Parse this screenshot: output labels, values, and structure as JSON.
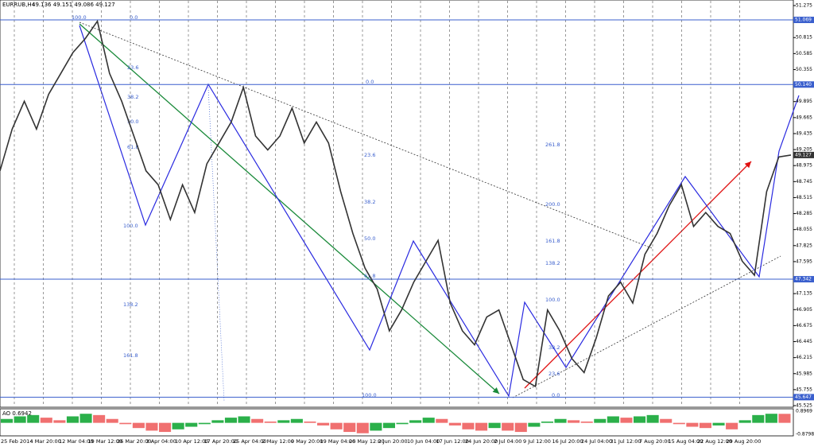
{
  "header": {
    "symbol": "EURRUB,H4",
    "quote": "49.136 49.151 49.086 49.127"
  },
  "price_axis": {
    "ylim": [
      45.525,
      51.275
    ],
    "ticks": [
      51.275,
      50.815,
      50.585,
      50.355,
      49.895,
      49.665,
      49.435,
      49.205,
      48.975,
      48.745,
      48.515,
      48.285,
      48.055,
      47.825,
      47.595,
      47.135,
      46.905,
      46.675,
      46.445,
      46.215,
      45.985,
      45.755,
      45.525
    ],
    "levels": [
      {
        "value": 51.069,
        "label": "51.069"
      },
      {
        "value": 50.14,
        "label": "50.140"
      },
      {
        "value": 47.342,
        "label": "47.342"
      },
      {
        "value": 45.647,
        "label": "45.647"
      }
    ],
    "current": 49.127
  },
  "time_axis": [
    "25 Feb 2014",
    "4 Mar 20:00",
    "12 Mar 04:00",
    "19 Mar 12:00",
    "26 Mar 20:00",
    "3 Apr 04:00",
    "10 Apr 12:00",
    "17 Apr 20:00",
    "25 Apr 04:00",
    "2 May 12:00",
    "9 May 20:00",
    "19 May 04:00",
    "26 May 12:00",
    "2 Jun 20:00",
    "10 Jun 04:00",
    "17 Jun 12:00",
    "24 Jun 20:00",
    "2 Jul 04:00",
    "9 Jul 12:00",
    "16 Jul 20:00",
    "24 Jul 04:00",
    "31 Jul 12:00",
    "7 Aug 20:00",
    "15 Aug 04:00",
    "22 Aug 12:00",
    "29 Aug 20:00"
  ],
  "price": [
    48.9,
    49.5,
    49.9,
    49.5,
    50.0,
    50.3,
    50.6,
    50.8,
    51.05,
    50.3,
    49.9,
    49.4,
    48.9,
    48.7,
    48.2,
    48.7,
    48.3,
    49.0,
    49.3,
    49.6,
    50.1,
    49.4,
    49.2,
    49.4,
    49.8,
    49.3,
    49.6,
    49.3,
    48.6,
    48.0,
    47.5,
    47.2,
    46.6,
    46.9,
    47.3,
    47.6,
    47.9,
    47.0,
    46.6,
    46.4,
    46.8,
    46.9,
    46.4,
    45.9,
    45.8,
    46.9,
    46.6,
    46.2,
    46.0,
    46.5,
    47.1,
    47.3,
    47.0,
    47.7,
    48.0,
    48.4,
    48.7,
    48.1,
    48.3,
    48.1,
    48.0,
    47.6,
    47.4,
    48.6,
    49.1,
    49.127
  ],
  "ao": {
    "label": "AO 0.6942",
    "ylim": [
      -0.8798,
      0.8969
    ],
    "ticks": [
      0.8969,
      -0.8798
    ],
    "values": [
      0.3,
      0.5,
      0.6,
      0.4,
      0.2,
      0.5,
      0.7,
      0.6,
      0.3,
      -0.1,
      -0.4,
      -0.6,
      -0.7,
      -0.5,
      -0.3,
      -0.1,
      0.2,
      0.4,
      0.5,
      0.3,
      0.1,
      0.2,
      0.3,
      0.1,
      -0.2,
      -0.5,
      -0.7,
      -0.8,
      -0.6,
      -0.4,
      -0.1,
      0.2,
      0.4,
      0.3,
      -0.2,
      -0.5,
      -0.6,
      -0.4,
      -0.6,
      -0.7,
      -0.3,
      0.1,
      0.3,
      0.2,
      0.1,
      0.3,
      0.5,
      0.4,
      0.5,
      0.6,
      0.3,
      -0.1,
      -0.3,
      -0.4,
      -0.2,
      -0.5,
      0.2,
      0.6,
      0.7,
      0.6942
    ]
  },
  "fib": {
    "left": [
      "100.0",
      "0.0",
      "23.6",
      "38.2",
      "50.0",
      "61.8",
      "100.0",
      "138.2",
      "161.8"
    ],
    "middle": [
      "0.0",
      "23.6",
      "38.2",
      "50.0",
      "61.8",
      "100.0"
    ],
    "right": [
      "261.8",
      "200.0",
      "161.8",
      "138.2",
      "100.0",
      "38.2",
      "23.6",
      "0.0"
    ]
  }
}
